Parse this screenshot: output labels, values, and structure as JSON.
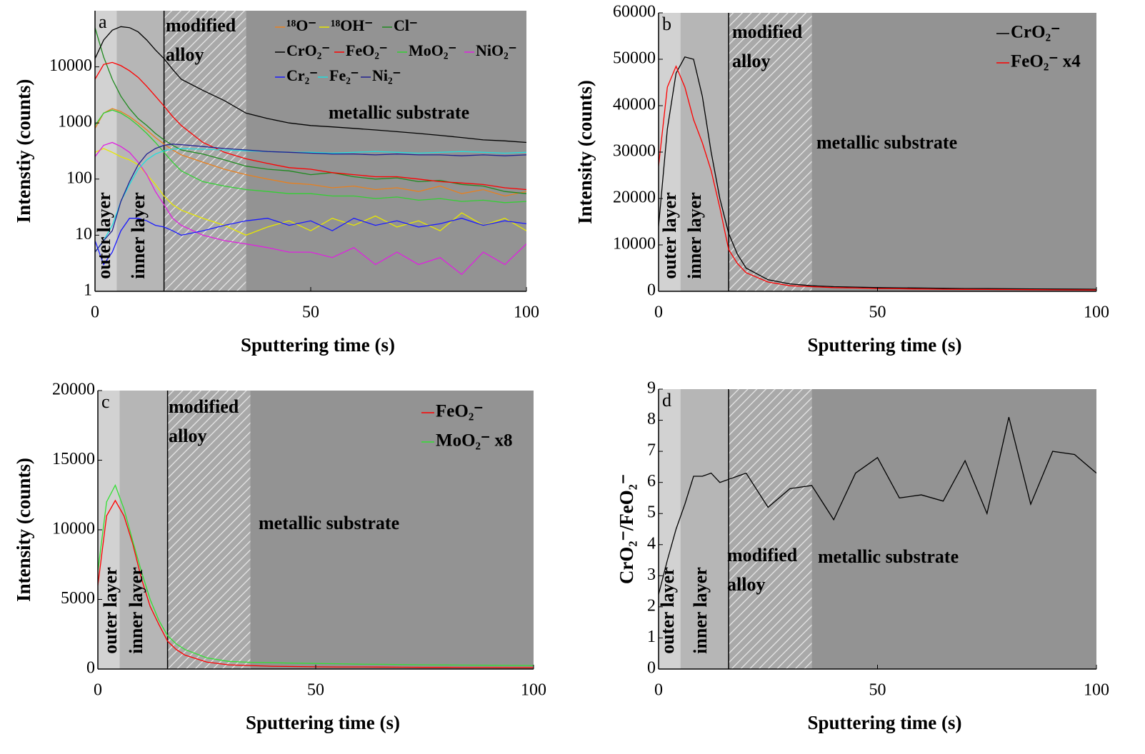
{
  "chart_data": [
    {
      "type": "line",
      "panel_label": "a",
      "log_y": true,
      "ylabel": "Intenstiy (counts)",
      "xlabel": "Sputtering time (s)",
      "xlim": [
        0,
        100
      ],
      "xticks": [
        0,
        50,
        100
      ],
      "ylim": [
        1,
        100000
      ],
      "yticks": [
        1,
        10,
        100,
        1000,
        10000
      ],
      "regions": [
        {
          "label": [
            "outer layer"
          ],
          "start": 0,
          "end": 5,
          "color": "#d2d2d2"
        },
        {
          "label": [
            "inner layer"
          ],
          "start": 5,
          "end": 16,
          "color": "#b6b6b6"
        },
        {
          "label": [
            "modified",
            "alloy"
          ],
          "start": 16,
          "end": 35,
          "color": "#a9a9a9",
          "hatch": true
        },
        {
          "label": [
            "metallic substrate"
          ],
          "start": 35,
          "end": 100,
          "color": "#939393"
        }
      ],
      "x": [
        0,
        2,
        4,
        6,
        8,
        10,
        12,
        14,
        16,
        18,
        20,
        25,
        30,
        35,
        40,
        45,
        50,
        55,
        60,
        65,
        70,
        75,
        80,
        85,
        90,
        95,
        100
      ],
      "series": [
        {
          "name": "¹⁸O⁻",
          "color": "#e8801e",
          "values": [
            800,
            1500,
            1800,
            1600,
            1300,
            1000,
            750,
            550,
            420,
            330,
            270,
            200,
            150,
            120,
            100,
            85,
            80,
            70,
            75,
            65,
            70,
            60,
            75,
            55,
            65,
            50,
            60
          ]
        },
        {
          "name": "¹⁸OH⁻",
          "color": "#e8e800",
          "values": [
            300,
            350,
            300,
            250,
            220,
            180,
            120,
            80,
            50,
            35,
            28,
            20,
            15,
            10,
            14,
            18,
            12,
            20,
            15,
            22,
            14,
            18,
            12,
            25,
            15,
            20,
            12
          ]
        },
        {
          "name": "Cl⁻",
          "color": "#1e8a1e",
          "values": [
            50000,
            15000,
            6000,
            3000,
            1800,
            1200,
            900,
            650,
            500,
            400,
            330,
            280,
            220,
            170,
            150,
            140,
            120,
            130,
            110,
            100,
            105,
            90,
            95,
            80,
            75,
            60,
            55
          ]
        },
        {
          "name": "CrO₂⁻",
          "color": "#000000",
          "values": [
            14000,
            30000,
            45000,
            52000,
            50000,
            42000,
            30000,
            20000,
            14000,
            9000,
            6000,
            3800,
            2500,
            1500,
            1200,
            1000,
            900,
            850,
            800,
            750,
            700,
            650,
            600,
            550,
            500,
            480,
            450
          ]
        },
        {
          "name": "FeO₂⁻",
          "color": "#ff0000",
          "values": [
            6000,
            11000,
            12000,
            10500,
            8500,
            6500,
            4500,
            3000,
            2000,
            1300,
            900,
            450,
            300,
            230,
            190,
            160,
            150,
            130,
            120,
            110,
            110,
            100,
            90,
            85,
            80,
            70,
            65
          ]
        },
        {
          "name": "MoO₂⁻",
          "color": "#33d033",
          "values": [
            900,
            1500,
            1700,
            1500,
            1200,
            900,
            650,
            450,
            300,
            200,
            140,
            90,
            75,
            65,
            60,
            55,
            55,
            50,
            50,
            45,
            48,
            42,
            45,
            40,
            42,
            38,
            40
          ]
        },
        {
          "name": "NiO₂⁻",
          "color": "#e020e0",
          "values": [
            250,
            400,
            450,
            380,
            300,
            200,
            120,
            60,
            35,
            20,
            15,
            10,
            8,
            7,
            6,
            5,
            5,
            4,
            6,
            3,
            5,
            3,
            4,
            2,
            5,
            3,
            7
          ]
        },
        {
          "name": "Cr₂⁻",
          "color": "#1a1aff",
          "values": [
            8,
            3,
            5,
            12,
            20,
            20,
            18,
            15,
            14,
            12,
            10,
            12,
            15,
            18,
            20,
            15,
            18,
            12,
            20,
            15,
            18,
            14,
            16,
            20,
            15,
            18,
            16
          ]
        },
        {
          "name": "Fe₂⁻",
          "color": "#22dede",
          "values": [
            5,
            8,
            15,
            40,
            80,
            150,
            220,
            280,
            320,
            340,
            350,
            340,
            330,
            320,
            310,
            300,
            300,
            290,
            300,
            310,
            300,
            290,
            300,
            310,
            300,
            290,
            300
          ]
        },
        {
          "name": "Ni₂⁻",
          "color": "#202090",
          "values": [
            5,
            8,
            12,
            40,
            90,
            180,
            280,
            350,
            400,
            420,
            410,
            380,
            350,
            330,
            310,
            300,
            290,
            280,
            280,
            270,
            280,
            270,
            270,
            260,
            270,
            260,
            270
          ]
        }
      ]
    },
    {
      "type": "line",
      "panel_label": "b",
      "ylabel": "Intensity (counts)",
      "xlabel": "Sputtering time (s)",
      "xlim": [
        0,
        100
      ],
      "xticks": [
        0,
        50,
        100
      ],
      "ylim": [
        0,
        60000
      ],
      "yticks": [
        0,
        10000,
        20000,
        30000,
        40000,
        50000,
        60000
      ],
      "regions": [
        {
          "label": [
            "outer layer"
          ],
          "start": 0,
          "end": 5,
          "color": "#d2d2d2"
        },
        {
          "label": [
            "inner layer"
          ],
          "start": 5,
          "end": 16,
          "color": "#b6b6b6"
        },
        {
          "label": [
            "modified",
            "alloy"
          ],
          "start": 16,
          "end": 35,
          "color": "#a9a9a9",
          "hatch": true
        },
        {
          "label": [
            "metallic substrate"
          ],
          "start": 35,
          "end": 100,
          "color": "#939393"
        }
      ],
      "x": [
        0,
        2,
        4,
        6,
        8,
        10,
        12,
        14,
        16,
        18,
        20,
        25,
        30,
        35,
        40,
        45,
        50,
        55,
        60,
        65,
        70,
        75,
        80,
        85,
        90,
        95,
        100
      ],
      "series": [
        {
          "name": "CrO₂⁻",
          "color": "#000000",
          "values": [
            14000,
            35000,
            47000,
            50500,
            50000,
            42000,
            30000,
            20000,
            12500,
            8000,
            5000,
            2500,
            1600,
            1200,
            1000,
            900,
            800,
            750,
            700,
            650,
            600,
            580,
            550,
            520,
            500,
            480,
            450
          ]
        },
        {
          "name": "FeO₂⁻ x4",
          "color": "#ff0000",
          "values": [
            27000,
            44000,
            48500,
            44000,
            37000,
            32000,
            26000,
            18000,
            9000,
            6000,
            4000,
            2000,
            1200,
            1000,
            800,
            700,
            600,
            550,
            500,
            450,
            420,
            400,
            380,
            350,
            330,
            310,
            300
          ]
        }
      ]
    },
    {
      "type": "line",
      "panel_label": "c",
      "ylabel": "Intensity (counts)",
      "xlabel": "Sputtering time (s)",
      "xlim": [
        0,
        100
      ],
      "xticks": [
        0,
        50,
        100
      ],
      "ylim": [
        0,
        20000
      ],
      "yticks": [
        0,
        5000,
        10000,
        15000,
        20000
      ],
      "regions": [
        {
          "label": [
            "outer layer"
          ],
          "start": 0,
          "end": 5,
          "color": "#d2d2d2"
        },
        {
          "label": [
            "inner layer"
          ],
          "start": 5,
          "end": 16,
          "color": "#b6b6b6"
        },
        {
          "label": [
            "modified",
            "alloy"
          ],
          "start": 16,
          "end": 35,
          "color": "#a9a9a9",
          "hatch": true
        },
        {
          "label": [
            "metallic substrate"
          ],
          "start": 35,
          "end": 100,
          "color": "#939393"
        }
      ],
      "x": [
        0,
        2,
        4,
        6,
        8,
        10,
        12,
        14,
        16,
        18,
        20,
        25,
        30,
        35,
        40,
        45,
        50,
        55,
        60,
        65,
        70,
        75,
        80,
        85,
        90,
        95,
        100
      ],
      "series": [
        {
          "name": "FeO₂⁻",
          "color": "#ff0000",
          "values": [
            6000,
            11000,
            12100,
            11000,
            9000,
            6500,
            4500,
            3200,
            2000,
            1400,
            1000,
            500,
            300,
            250,
            200,
            180,
            160,
            150,
            150,
            140,
            130,
            120,
            120,
            110,
            110,
            100,
            100
          ]
        },
        {
          "name": "MoO₂⁻ x8",
          "color": "#33e033",
          "values": [
            7000,
            12000,
            13200,
            11500,
            9200,
            7000,
            5000,
            3500,
            2400,
            1800,
            1400,
            800,
            550,
            480,
            450,
            420,
            400,
            380,
            350,
            340,
            320,
            300,
            290,
            280,
            270,
            260,
            250
          ]
        }
      ]
    },
    {
      "type": "line",
      "panel_label": "d",
      "ylabel": "CrO₂⁻/FeO₂⁻",
      "xlabel": "Sputtering time (s)",
      "xlim": [
        0,
        100
      ],
      "xticks": [
        0,
        50,
        100
      ],
      "ylim": [
        0,
        9
      ],
      "yticks": [
        0,
        1,
        2,
        3,
        4,
        5,
        6,
        7,
        8,
        9
      ],
      "regions": [
        {
          "label": [
            "outer layer"
          ],
          "start": 0,
          "end": 5,
          "color": "#d2d2d2"
        },
        {
          "label": [
            "inner layer"
          ],
          "start": 5,
          "end": 16,
          "color": "#b6b6b6"
        },
        {
          "label": [
            "modified",
            "alloy"
          ],
          "start": 16,
          "end": 35,
          "color": "#a9a9a9",
          "hatch": true
        },
        {
          "label": [
            "metallic substrate"
          ],
          "start": 35,
          "end": 100,
          "color": "#939393"
        }
      ],
      "x": [
        0,
        2,
        4,
        6,
        8,
        10,
        12,
        14,
        16,
        18,
        20,
        25,
        30,
        35,
        40,
        45,
        50,
        55,
        60,
        65,
        70,
        75,
        80,
        85,
        90,
        95,
        100
      ],
      "series": [
        {
          "name": "CrO₂⁻/FeO₂⁻",
          "color": "#000000",
          "values": [
            2.4,
            3.5,
            4.5,
            5.3,
            6.2,
            6.2,
            6.3,
            6.0,
            6.1,
            6.2,
            6.3,
            5.2,
            5.8,
            5.9,
            4.8,
            6.3,
            6.8,
            5.5,
            5.6,
            5.4,
            6.7,
            5.0,
            8.1,
            5.3,
            7.0,
            6.9,
            6.3
          ]
        }
      ]
    }
  ]
}
